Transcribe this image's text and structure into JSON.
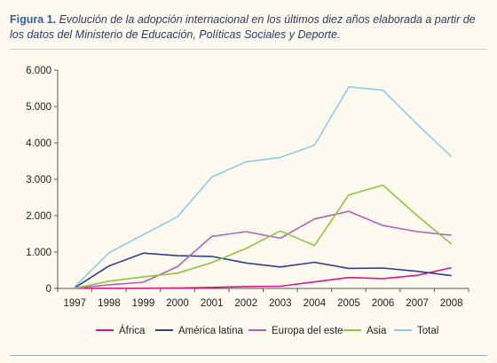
{
  "caption": {
    "label": "Figura 1.",
    "text": " Evolución de la adopción internacional en los últimos diez años elaborada a partir de los datos del Ministerio de Educación, Políticas Sociales y Deporte."
  },
  "chart_data": {
    "type": "line",
    "title": "",
    "xlabel": "",
    "ylabel": "",
    "x": [
      "1997",
      "1998",
      "1999",
      "2000",
      "2001",
      "2002",
      "2003",
      "2004",
      "2005",
      "2006",
      "2007",
      "2008"
    ],
    "ylim": [
      0,
      6000
    ],
    "yticks": [
      0,
      1000,
      2000,
      3000,
      4000,
      5000,
      6000
    ],
    "ytick_labels": [
      "0",
      "1.000",
      "2.000",
      "3.000",
      "4.000",
      "5.000",
      "6.000"
    ],
    "grid": false,
    "legend_position": "bottom",
    "series": [
      {
        "name": "África",
        "color": "#e0177e",
        "values": [
          5,
          5,
          5,
          10,
          30,
          50,
          60,
          180,
          300,
          270,
          360,
          570
        ]
      },
      {
        "name": "América latina",
        "color": "#2d3f8f",
        "values": [
          20,
          620,
          970,
          900,
          880,
          700,
          590,
          720,
          550,
          560,
          470,
          350
        ]
      },
      {
        "name": "Europa del este",
        "color": "#b561b6",
        "values": [
          10,
          100,
          170,
          600,
          1430,
          1560,
          1380,
          1910,
          2120,
          1730,
          1560,
          1460
        ]
      },
      {
        "name": "Asia",
        "color": "#8dc63f",
        "values": [
          10,
          200,
          320,
          420,
          710,
          1100,
          1580,
          1180,
          2570,
          2840,
          2000,
          1220
        ]
      },
      {
        "name": "Total",
        "color": "#8ccbea",
        "values": [
          50,
          980,
          1480,
          1970,
          3060,
          3480,
          3600,
          3940,
          5540,
          5450,
          4510,
          3620
        ]
      }
    ]
  }
}
